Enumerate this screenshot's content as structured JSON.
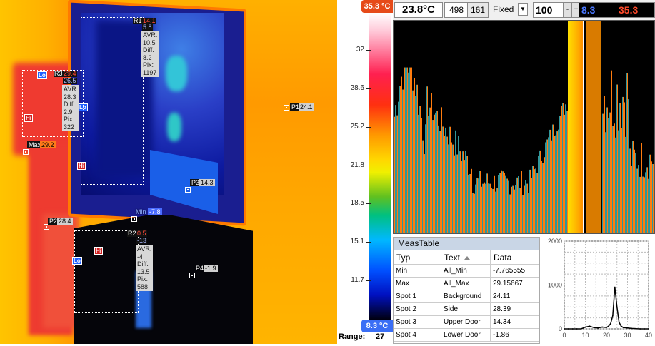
{
  "thermal": {
    "regions": [
      {
        "id": "R1",
        "max": "14.1",
        "min": "5.8",
        "avr_label": "AVR:",
        "avr": "10.5",
        "diff_label": "Diff.",
        "diff": "8.2",
        "pix_label": "Pix:",
        "pix": "1197"
      },
      {
        "id": "R3",
        "max": "29.4",
        "min": "26.5",
        "avr_label": "AVR:",
        "avr": "28.3",
        "diff_label": "Diff.",
        "diff": "2.9",
        "pix_label": "Pix:",
        "pix": "322"
      },
      {
        "id": "R2",
        "max": "0.5",
        "min": "-13",
        "avr_label": "AVR:",
        "avr": "-4",
        "diff_label": "Diff.",
        "diff": "13.5",
        "pix_label": "Pix:",
        "pix": "588"
      }
    ],
    "markers": {
      "hi": "Hi",
      "lo": "Lo"
    },
    "spots": [
      {
        "id": "P1",
        "value": "24.1"
      },
      {
        "id": "P2",
        "value": "28.4"
      },
      {
        "id": "P3",
        "value": "14.3"
      },
      {
        "id": "P4",
        "value": "-1.9"
      }
    ],
    "max_label": "Max",
    "max_value": "29.2",
    "min_label": "Min",
    "min_value": "-7.8"
  },
  "scale": {
    "max": "35.3 °C",
    "min": "8.3 °C",
    "ticks": [
      "32",
      "28.6",
      "25.2",
      "21.8",
      "18.5",
      "15.1",
      "11.7"
    ],
    "range_label": "Range:",
    "range_value": "27"
  },
  "toolbar": {
    "temperature": "23.8°C",
    "x": "498",
    "y": "161",
    "mode": "Fixed",
    "level": "100",
    "minus": "-",
    "plus": "+",
    "low": "8.3",
    "high": "35.3"
  },
  "histogram": {
    "colors": {
      "blue": "#1a3cff",
      "yellow": "#ffd000",
      "red": "#ff2020",
      "green": "#2ecc40"
    }
  },
  "meas_table": {
    "title": "MeasTable",
    "headers": [
      "Typ",
      "Text",
      "Data"
    ],
    "rows": [
      [
        "Min",
        "All_Min",
        "-7.765555"
      ],
      [
        "Max",
        "All_Max",
        "29.15667"
      ],
      [
        "Spot 1",
        "Background",
        "24.11"
      ],
      [
        "Spot 2",
        "Side",
        "28.39"
      ],
      [
        "Spot 3",
        "Upper Door",
        "14.34"
      ],
      [
        "Spot 4",
        "Lower Door",
        "-1.86"
      ]
    ]
  },
  "chart_data": {
    "type": "line",
    "x": [
      0,
      2,
      4,
      6,
      8,
      10,
      12,
      14,
      16,
      18,
      20,
      21,
      22,
      23,
      24,
      25,
      26,
      27,
      28,
      30,
      32,
      34,
      36,
      38,
      40
    ],
    "series": [
      {
        "values": [
          0,
          0,
          0,
          0,
          0,
          40,
          60,
          30,
          20,
          40,
          30,
          60,
          120,
          300,
          950,
          500,
          150,
          60,
          30,
          20,
          10,
          5,
          0,
          0,
          0
        ]
      }
    ],
    "xlim": [
      0,
      40
    ],
    "ylim": [
      0,
      2000
    ],
    "xticks": [
      "0",
      "10",
      "20",
      "30",
      "40"
    ],
    "yticks": [
      "0",
      "1000",
      "2000"
    ],
    "grid": true
  }
}
